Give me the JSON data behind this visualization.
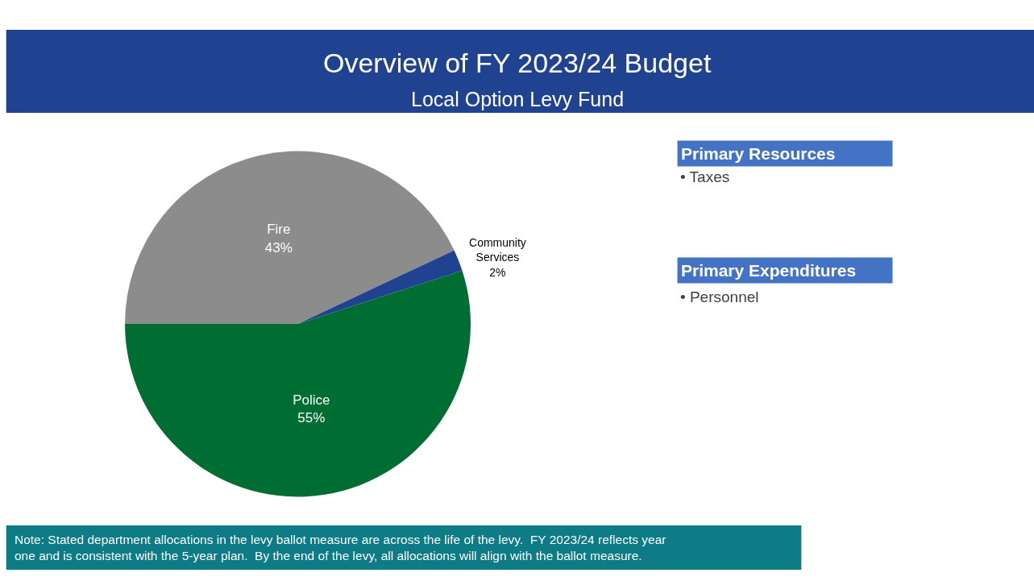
{
  "chart_data": {
    "type": "pie",
    "title": "Overview of FY 2023/24 Budget",
    "subtitle": "Local Option Levy Fund",
    "categories": [
      "Fire",
      "Community Services",
      "Police"
    ],
    "values": [
      43,
      2,
      55
    ],
    "value_labels": [
      "43%",
      "2%",
      "55%"
    ],
    "colors": [
      "#8c8c8c",
      "#1f4291",
      "#006e33"
    ],
    "legend": false,
    "annotations": [
      "Primary Resources",
      "• Taxes",
      "Primary Expenditures",
      "• Personnel",
      "Note: Stated department allocations in the levy ballot measure are across the life of the levy.  FY 2023/24 reflects year\none and is consistent with the 5-year plan.  By the end of the levy, all allocations will align with the ballot measure."
    ]
  }
}
